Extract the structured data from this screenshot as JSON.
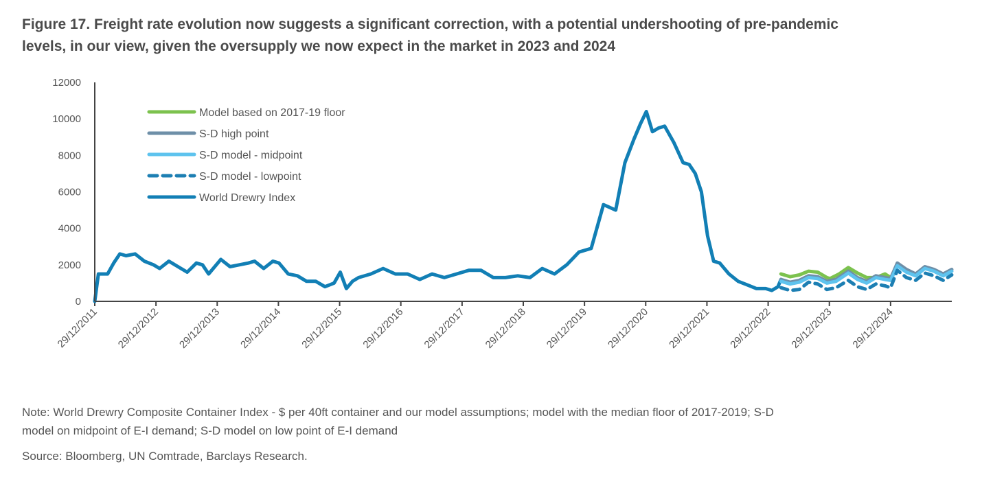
{
  "title": {
    "line1": "Figure 17. Freight rate evolution now suggests a significant correction, with a potential undershooting of pre-pandemic",
    "line2": "levels, in our view, given the oversupply we now expect in the market in 2023 and 2024"
  },
  "note": {
    "line1": "Note: World Drewry Composite Container Index - $ per 40ft container and our model assumptions; model with the median floor of 2017-2019; S-D",
    "line2": "model on midpoint of E-I demand; S-D model on low point of E-I demand"
  },
  "source": "Source: Bloomberg, UN Comtrade, Barclays Research.",
  "chart_data": {
    "type": "line",
    "title": "",
    "xlabel": "",
    "ylabel": "",
    "ylim": [
      0,
      12000
    ],
    "yticks": [
      0,
      2000,
      4000,
      6000,
      8000,
      10000,
      12000
    ],
    "xlim": [
      2011.99,
      2025.99
    ],
    "xtick_labels": [
      "29/12/2011",
      "29/12/2012",
      "29/12/2013",
      "29/12/2014",
      "29/12/2015",
      "29/12/2016",
      "29/12/2017",
      "29/12/2018",
      "29/12/2019",
      "29/12/2020",
      "29/12/2021",
      "29/12/2022",
      "29/12/2023",
      "29/12/2024"
    ],
    "xtick_values": [
      2011.99,
      2012.99,
      2013.99,
      2014.99,
      2015.99,
      2016.99,
      2017.99,
      2018.99,
      2019.99,
      2020.99,
      2021.99,
      2022.99,
      2023.99,
      2024.99
    ],
    "grid": false,
    "legend_position": "top-left",
    "series": [
      {
        "name": "Model based on 2017-19 floor",
        "color": "#7cc24e",
        "style": "solid",
        "x": [
          2023.2,
          2023.35,
          2023.5,
          2023.65,
          2023.8,
          2023.95,
          2024.0,
          2024.15,
          2024.3,
          2024.45,
          2024.6,
          2024.75,
          2024.9,
          2024.99
        ],
        "y": [
          1500,
          1350,
          1450,
          1650,
          1600,
          1300,
          1250,
          1500,
          1850,
          1550,
          1300,
          1300,
          1500,
          1300
        ]
      },
      {
        "name": "S-D high point",
        "color": "#6e8fa8",
        "style": "solid",
        "x": [
          2023.2,
          2023.35,
          2023.5,
          2023.65,
          2023.8,
          2023.95,
          2024.1,
          2024.3,
          2024.45,
          2024.6,
          2024.75,
          2024.9,
          2024.99,
          2025.1,
          2025.25,
          2025.4,
          2025.55,
          2025.7,
          2025.85,
          2025.99
        ],
        "y": [
          1200,
          1050,
          1150,
          1400,
          1350,
          1100,
          1200,
          1650,
          1300,
          1100,
          1400,
          1300,
          1250,
          2100,
          1750,
          1500,
          1900,
          1750,
          1500,
          1750
        ]
      },
      {
        "name": "S-D model - midpoint",
        "color": "#5ec3ee",
        "style": "solid",
        "x": [
          2023.2,
          2023.35,
          2023.5,
          2023.65,
          2023.8,
          2023.95,
          2024.1,
          2024.3,
          2024.45,
          2024.6,
          2024.75,
          2024.9,
          2024.99,
          2025.1,
          2025.25,
          2025.4,
          2025.55,
          2025.7,
          2025.85,
          2025.99
        ],
        "y": [
          1100,
          950,
          1050,
          1300,
          1250,
          1000,
          1100,
          1550,
          1200,
          1000,
          1300,
          1200,
          1150,
          1950,
          1600,
          1400,
          1800,
          1650,
          1400,
          1650
        ]
      },
      {
        "name": "S-D model - lowpoint",
        "color": "#1d7fb3",
        "style": "dashed",
        "x": [
          2023.2,
          2023.35,
          2023.5,
          2023.65,
          2023.8,
          2023.95,
          2024.1,
          2024.3,
          2024.45,
          2024.6,
          2024.75,
          2024.9,
          2024.99,
          2025.1,
          2025.25,
          2025.4,
          2025.55,
          2025.7,
          2025.85,
          2025.99
        ],
        "y": [
          750,
          600,
          650,
          1050,
          950,
          650,
          750,
          1150,
          800,
          650,
          950,
          850,
          750,
          1700,
          1300,
          1150,
          1550,
          1400,
          1150,
          1450
        ]
      },
      {
        "name": "World Drewry Index",
        "color": "#127fb5",
        "style": "solid",
        "x": [
          2011.99,
          2012.05,
          2012.2,
          2012.3,
          2012.4,
          2012.5,
          2012.65,
          2012.8,
          2012.95,
          2013.05,
          2013.2,
          2013.35,
          2013.5,
          2013.65,
          2013.75,
          2013.85,
          2013.95,
          2014.05,
          2014.2,
          2014.35,
          2014.5,
          2014.6,
          2014.75,
          2014.9,
          2015.0,
          2015.15,
          2015.3,
          2015.45,
          2015.6,
          2015.75,
          2015.9,
          2016.0,
          2016.1,
          2016.2,
          2016.3,
          2016.5,
          2016.7,
          2016.9,
          2017.1,
          2017.3,
          2017.5,
          2017.7,
          2017.9,
          2018.1,
          2018.3,
          2018.5,
          2018.7,
          2018.9,
          2019.1,
          2019.3,
          2019.5,
          2019.7,
          2019.9,
          2020.1,
          2020.3,
          2020.5,
          2020.65,
          2020.8,
          2020.9,
          2021.0,
          2021.1,
          2021.2,
          2021.3,
          2021.45,
          2021.6,
          2021.7,
          2021.8,
          2021.9,
          2022.0,
          2022.1,
          2022.2,
          2022.35,
          2022.5,
          2022.65,
          2022.8,
          2022.95,
          2023.05,
          2023.15,
          2023.2
        ],
        "y": [
          0,
          1500,
          1500,
          2100,
          2600,
          2500,
          2600,
          2200,
          2000,
          1800,
          2200,
          1900,
          1600,
          2100,
          2000,
          1500,
          1900,
          2300,
          1900,
          2000,
          2100,
          2200,
          1800,
          2200,
          2100,
          1500,
          1400,
          1100,
          1100,
          800,
          1000,
          1600,
          700,
          1100,
          1300,
          1500,
          1800,
          1500,
          1500,
          1200,
          1500,
          1300,
          1500,
          1700,
          1700,
          1300,
          1300,
          1400,
          1300,
          1800,
          1500,
          2000,
          2700,
          2900,
          5300,
          5000,
          7600,
          8900,
          9700,
          10400,
          9300,
          9500,
          9600,
          8700,
          7600,
          7500,
          7000,
          6000,
          3600,
          2200,
          2100,
          1500,
          1100,
          900,
          700,
          700,
          600,
          800,
          1200
        ]
      }
    ]
  }
}
